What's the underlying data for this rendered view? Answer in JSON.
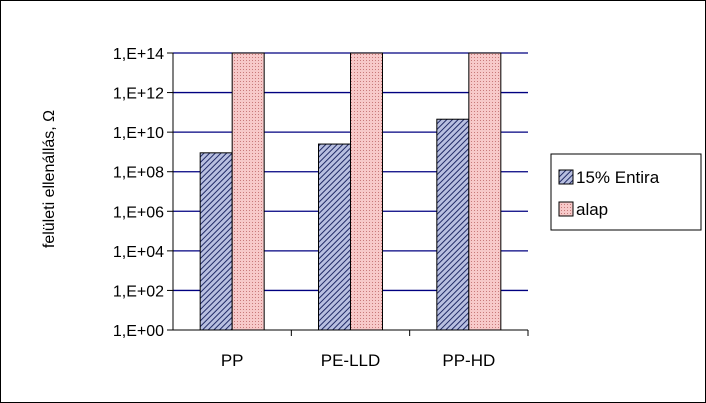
{
  "chart_data": {
    "type": "bar",
    "scale": "log10",
    "categories": [
      "PP",
      "PE-LLD",
      "PP-HD"
    ],
    "series": [
      {
        "name": "15% Entira",
        "values": [
          900000000.0,
          2500000000.0,
          45000000000.0
        ],
        "color": "#6f7bb5",
        "pattern": "diagonal-hatch"
      },
      {
        "name": "alap",
        "values": [
          100000000000000.0,
          100000000000000.0,
          100000000000000.0
        ],
        "color": "#f2b3b3",
        "pattern": "fine-dots"
      }
    ],
    "ylabel": "felületi ellenállás, Ω",
    "ylim": [
      1,
      100000000000000.0
    ],
    "y_ticks": [
      "1,E+00",
      "1,E+02",
      "1,E+04",
      "1,E+06",
      "1,E+08",
      "1,E+10",
      "1,E+12",
      "1,E+14"
    ],
    "gridlines": true,
    "grid_color": "#000080",
    "legend_position": "right"
  }
}
